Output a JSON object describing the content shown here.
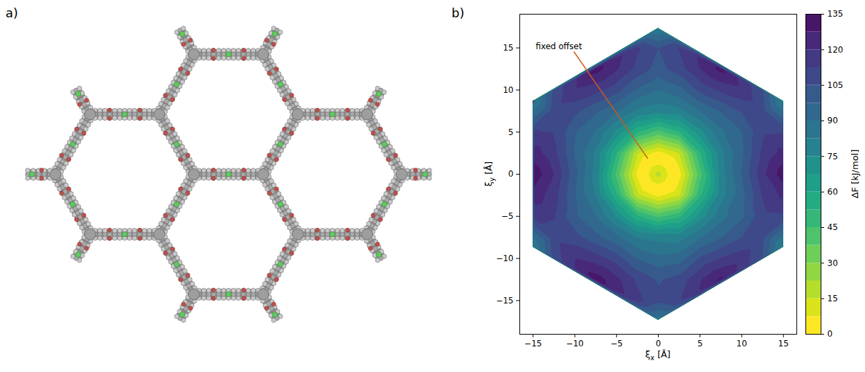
{
  "panel_labels": [
    "a)",
    "b)"
  ],
  "chart_data": {
    "type": "contour",
    "x_label": "ξx [Å]",
    "y_label": "ξy [Å]",
    "xlim": [
      -16.6,
      16.6
    ],
    "ylim": [
      -19,
      19
    ],
    "xticks": [
      -15,
      -10,
      -5,
      0,
      5,
      10,
      15
    ],
    "yticks": [
      -15,
      -10,
      -5,
      0,
      5,
      10,
      15
    ],
    "region": [
      [
        0,
        17.32
      ],
      [
        15,
        8.66
      ],
      [
        15,
        -8.66
      ],
      [
        0,
        -17.32
      ],
      [
        -15,
        -8.66
      ],
      [
        -15,
        8.66
      ]
    ],
    "samples": [
      [
        0,
        0,
        18
      ],
      [
        2,
        0,
        0
      ],
      [
        1.41,
        1.41,
        0
      ],
      [
        0,
        2,
        0
      ],
      [
        -1.41,
        1.41,
        0
      ],
      [
        -2,
        0,
        0
      ],
      [
        -1.41,
        -1.41,
        0
      ],
      [
        0,
        -2,
        0
      ],
      [
        1.41,
        -1.41,
        0
      ],
      [
        2.5,
        0,
        4
      ],
      [
        5,
        0,
        42
      ],
      [
        7.5,
        0,
        78
      ],
      [
        10,
        0,
        98
      ],
      [
        12.5,
        0,
        118
      ],
      [
        15,
        0,
        132
      ],
      [
        -2.5,
        0,
        5
      ],
      [
        -5,
        0,
        43
      ],
      [
        -7.5,
        0,
        79
      ],
      [
        -10,
        0,
        100
      ],
      [
        -12.5,
        0,
        120
      ],
      [
        -15,
        0,
        133
      ],
      [
        0,
        2.5,
        4
      ],
      [
        0,
        5,
        42
      ],
      [
        0,
        7.5,
        78
      ],
      [
        0,
        10,
        90
      ],
      [
        0,
        12.5,
        102
      ],
      [
        0,
        15,
        105
      ],
      [
        0,
        17.32,
        82
      ],
      [
        0,
        -2.5,
        5
      ],
      [
        0,
        -5,
        43
      ],
      [
        0,
        -7.5,
        80
      ],
      [
        0,
        -10,
        92
      ],
      [
        0,
        -12.5,
        104
      ],
      [
        0,
        -15,
        107
      ],
      [
        0,
        -17.32,
        86
      ],
      [
        15,
        8.66,
        80
      ],
      [
        15,
        -8.66,
        79
      ],
      [
        -15,
        8.66,
        81
      ],
      [
        -15,
        -8.66,
        82
      ],
      [
        2.5,
        2.5,
        15
      ],
      [
        2.5,
        5,
        52
      ],
      [
        2.5,
        7.5,
        80
      ],
      [
        2.5,
        10,
        95
      ],
      [
        2.5,
        12.5,
        109
      ],
      [
        2.5,
        15,
        113
      ],
      [
        5,
        2.5,
        52
      ],
      [
        5,
        5,
        72
      ],
      [
        5,
        7.5,
        90
      ],
      [
        5,
        10,
        107
      ],
      [
        5,
        12.5,
        120
      ],
      [
        7.5,
        2.5,
        80
      ],
      [
        7.5,
        5,
        88
      ],
      [
        7.5,
        7.5,
        98
      ],
      [
        7.5,
        10,
        114
      ],
      [
        7.5,
        12.5,
        130
      ],
      [
        10,
        2.5,
        96
      ],
      [
        10,
        5,
        97
      ],
      [
        10,
        7.5,
        106
      ],
      [
        10,
        10,
        118
      ],
      [
        12.5,
        2.5,
        114
      ],
      [
        12.5,
        5,
        111
      ],
      [
        12.5,
        7.5,
        108
      ],
      [
        12.5,
        10,
        106
      ],
      [
        15,
        2.5,
        123
      ],
      [
        15,
        5,
        112
      ],
      [
        15,
        7.5,
        88
      ],
      [
        -2.5,
        2.5,
        16
      ],
      [
        -2.5,
        5,
        53
      ],
      [
        -2.5,
        7.5,
        81
      ],
      [
        -2.5,
        10,
        96
      ],
      [
        -2.5,
        12.5,
        110
      ],
      [
        -2.5,
        15,
        114
      ],
      [
        -5,
        2.5,
        53
      ],
      [
        -5,
        5,
        73
      ],
      [
        -5,
        7.5,
        91
      ],
      [
        -5,
        10,
        108
      ],
      [
        -5,
        12.5,
        121
      ],
      [
        -7.5,
        2.5,
        81
      ],
      [
        -7.5,
        5,
        89
      ],
      [
        -7.5,
        7.5,
        99
      ],
      [
        -7.5,
        10,
        115
      ],
      [
        -7.5,
        12.5,
        131
      ],
      [
        -10,
        2.5,
        97
      ],
      [
        -10,
        5,
        98
      ],
      [
        -10,
        7.5,
        107
      ],
      [
        -10,
        10,
        119
      ],
      [
        -12.5,
        2.5,
        115
      ],
      [
        -12.5,
        5,
        112
      ],
      [
        -12.5,
        7.5,
        109
      ],
      [
        -12.5,
        10,
        107
      ],
      [
        -15,
        2.5,
        124
      ],
      [
        -15,
        5,
        113
      ],
      [
        -15,
        7.5,
        89
      ],
      [
        -2.5,
        -2.5,
        17
      ],
      [
        -2.5,
        -5,
        54
      ],
      [
        -2.5,
        -7.5,
        82
      ],
      [
        -2.5,
        -10,
        97
      ],
      [
        -2.5,
        -12.5,
        111
      ],
      [
        -2.5,
        -15,
        115
      ],
      [
        -5,
        -2.5,
        54
      ],
      [
        -5,
        -5,
        74
      ],
      [
        -5,
        -7.5,
        92
      ],
      [
        -5,
        -10,
        109
      ],
      [
        -5,
        -12.5,
        122
      ],
      [
        -7.5,
        -2.5,
        82
      ],
      [
        -7.5,
        -5,
        90
      ],
      [
        -7.5,
        -7.5,
        100
      ],
      [
        -7.5,
        -10,
        116
      ],
      [
        -7.5,
        -12.5,
        132
      ],
      [
        -10,
        -2.5,
        98
      ],
      [
        -10,
        -5,
        99
      ],
      [
        -10,
        -7.5,
        108
      ],
      [
        -10,
        -10,
        120
      ],
      [
        -12.5,
        -2.5,
        116
      ],
      [
        -12.5,
        -5,
        113
      ],
      [
        -12.5,
        -7.5,
        110
      ],
      [
        -12.5,
        -10,
        108
      ],
      [
        -15,
        -2.5,
        125
      ],
      [
        -15,
        -5,
        114
      ],
      [
        -15,
        -7.5,
        90
      ],
      [
        2.5,
        -2.5,
        14
      ],
      [
        2.5,
        -5,
        51
      ],
      [
        2.5,
        -7.5,
        79
      ],
      [
        2.5,
        -10,
        94
      ],
      [
        2.5,
        -12.5,
        108
      ],
      [
        2.5,
        -15,
        112
      ],
      [
        5,
        -2.5,
        51
      ],
      [
        5,
        -5,
        71
      ],
      [
        5,
        -7.5,
        89
      ],
      [
        5,
        -10,
        106
      ],
      [
        5,
        -12.5,
        119
      ],
      [
        7.5,
        -2.5,
        79
      ],
      [
        7.5,
        -5,
        87
      ],
      [
        7.5,
        -7.5,
        97
      ],
      [
        7.5,
        -10,
        113
      ],
      [
        7.5,
        -12.5,
        129
      ],
      [
        10,
        -2.5,
        95
      ],
      [
        10,
        -5,
        96
      ],
      [
        10,
        -7.5,
        105
      ],
      [
        10,
        -10,
        117
      ],
      [
        12.5,
        -2.5,
        113
      ],
      [
        12.5,
        -5,
        110
      ],
      [
        12.5,
        -7.5,
        107
      ],
      [
        12.5,
        -10,
        105
      ],
      [
        15,
        -2.5,
        122
      ],
      [
        15,
        -5,
        111
      ],
      [
        15,
        -7.5,
        87
      ]
    ],
    "colorbar": {
      "label": "ΔF [kJ/mol]",
      "range": [
        0,
        135
      ],
      "ticks": [
        0,
        15,
        30,
        45,
        60,
        75,
        90,
        105,
        120,
        135
      ],
      "levels": [
        0,
        7.5,
        15,
        22.5,
        30,
        37.5,
        45,
        52.5,
        60,
        67.5,
        75,
        82.5,
        90,
        97.5,
        105,
        112.5,
        120,
        127.5,
        135
      ],
      "color": "viridis_r"
    },
    "annotations": [
      {
        "text": "fixed offset",
        "x": -1.2,
        "y": 1.8,
        "xytext": [
          -14.7,
          15.2
        ],
        "color": "#cc5a1e"
      }
    ]
  }
}
